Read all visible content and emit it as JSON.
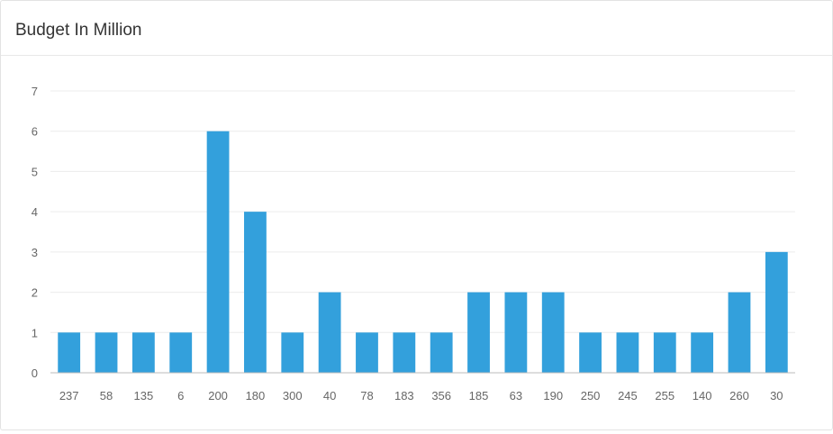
{
  "panel": {
    "title": "Budget In Million"
  },
  "chart_data": {
    "type": "bar",
    "title": "Budget In Million",
    "categories": [
      "237",
      "58",
      "135",
      "6",
      "200",
      "180",
      "300",
      "40",
      "78",
      "183",
      "356",
      "185",
      "63",
      "190",
      "250",
      "245",
      "255",
      "140",
      "260",
      "30"
    ],
    "values": [
      1,
      1,
      1,
      1,
      6,
      4,
      1,
      2,
      1,
      1,
      1,
      2,
      2,
      2,
      1,
      1,
      1,
      1,
      2,
      3
    ],
    "ylim": [
      0,
      7
    ],
    "yticks": [
      0,
      1,
      2,
      3,
      4,
      5,
      6,
      7
    ],
    "grid": true,
    "colors": {
      "bar": "#33a0dc",
      "grid": "#ececec",
      "axis": "#bbbbbb",
      "tick_text": "#666666"
    }
  }
}
